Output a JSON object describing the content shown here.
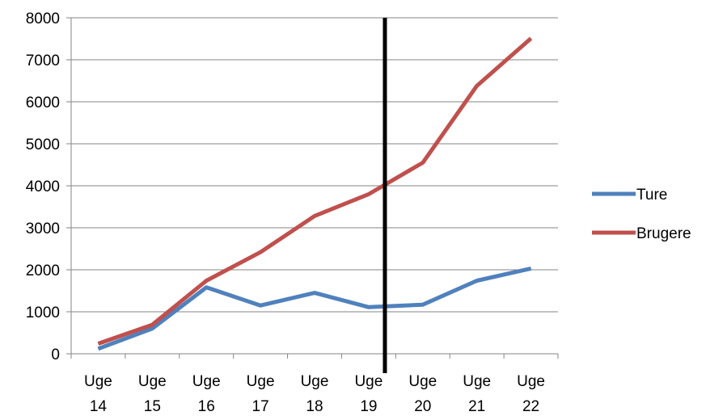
{
  "chart_data": {
    "type": "line",
    "categories": [
      [
        "Uge",
        "14"
      ],
      [
        "Uge",
        "15"
      ],
      [
        "Uge",
        "16"
      ],
      [
        "Uge",
        "17"
      ],
      [
        "Uge",
        "18"
      ],
      [
        "Uge",
        "19"
      ],
      [
        "Uge",
        "20"
      ],
      [
        "Uge",
        "21"
      ],
      [
        "Uge",
        "22"
      ]
    ],
    "series": [
      {
        "name": "Ture",
        "color": "#4f81bd",
        "values": [
          120,
          600,
          1580,
          1150,
          1450,
          1110,
          1170,
          1740,
          2030
        ]
      },
      {
        "name": "Brugere",
        "color": "#c0504d",
        "values": [
          240,
          690,
          1740,
          2420,
          3280,
          3800,
          4550,
          6380,
          7510
        ]
      }
    ],
    "ylim": [
      0,
      8000
    ],
    "yticks": [
      0,
      1000,
      2000,
      3000,
      4000,
      5000,
      6000,
      7000,
      8000
    ],
    "grid": true,
    "legend": "right",
    "marker_line": {
      "between": [
        "19",
        "20"
      ],
      "color": "#000000"
    },
    "title": "",
    "xlabel": "",
    "ylabel": ""
  }
}
